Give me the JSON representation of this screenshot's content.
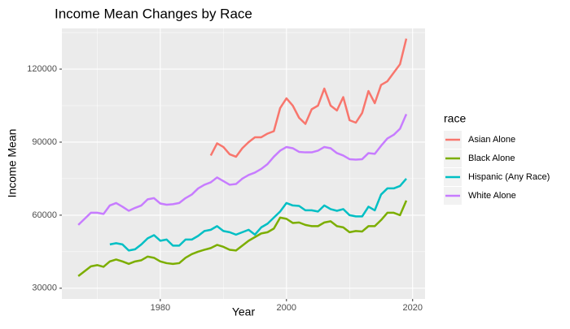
{
  "chart_data": {
    "type": "line",
    "title": "Income Mean Changes by Race",
    "x_label": "Year",
    "y_label": "Income Mean",
    "legend_title": "race",
    "legend_position": "right",
    "grid": true,
    "x": [
      1967,
      1968,
      1969,
      1970,
      1971,
      1972,
      1973,
      1974,
      1975,
      1976,
      1977,
      1978,
      1979,
      1980,
      1981,
      1982,
      1983,
      1984,
      1985,
      1986,
      1987,
      1988,
      1989,
      1990,
      1991,
      1992,
      1993,
      1994,
      1995,
      1996,
      1997,
      1998,
      1999,
      2000,
      2001,
      2002,
      2003,
      2004,
      2005,
      2006,
      2007,
      2008,
      2009,
      2010,
      2011,
      2012,
      2013,
      2014,
      2015,
      2016,
      2017,
      2018,
      2019
    ],
    "xlim": [
      1964.4,
      2021.97
    ],
    "xticks": [
      1980,
      2000,
      2020
    ],
    "ylim": [
      25600,
      136700
    ],
    "yticks": [
      30000,
      60000,
      90000,
      120000
    ],
    "series": [
      {
        "name": "Asian Alone",
        "color": "#F8766D",
        "values": [
          null,
          null,
          null,
          null,
          null,
          null,
          null,
          null,
          null,
          null,
          null,
          null,
          null,
          null,
          null,
          null,
          null,
          null,
          null,
          null,
          null,
          84500,
          89500,
          88000,
          85000,
          84000,
          87500,
          90000,
          92000,
          92000,
          93500,
          94500,
          104000,
          108000,
          105000,
          100000,
          97500,
          103500,
          105000,
          112000,
          105000,
          103000,
          108500,
          99000,
          98000,
          102000,
          111000,
          106000,
          113500,
          115000,
          118500,
          122000,
          132500
        ]
      },
      {
        "name": "Black Alone",
        "color": "#7CAE00",
        "values": [
          35000,
          37000,
          39000,
          39500,
          38800,
          41000,
          41800,
          41000,
          40000,
          41000,
          41500,
          43000,
          42500,
          41000,
          40300,
          40000,
          40300,
          42500,
          44000,
          45000,
          45800,
          46500,
          47800,
          47000,
          45800,
          45500,
          47500,
          49500,
          51000,
          52500,
          53000,
          54500,
          59000,
          58500,
          56800,
          57000,
          56000,
          55500,
          55500,
          57000,
          57500,
          55500,
          55000,
          53000,
          53500,
          53300,
          55500,
          55500,
          58000,
          61000,
          61000,
          60000,
          66000
        ]
      },
      {
        "name": "Hispanic (Any Race)",
        "color": "#00BFC4",
        "values": [
          null,
          null,
          null,
          null,
          null,
          48000,
          48500,
          48000,
          45500,
          46000,
          48000,
          50500,
          51800,
          49500,
          50000,
          47500,
          47500,
          50000,
          50000,
          51500,
          53500,
          54000,
          55500,
          53500,
          53000,
          52000,
          53000,
          54000,
          52000,
          55000,
          56500,
          59000,
          61500,
          65000,
          64000,
          63800,
          62000,
          62000,
          61500,
          64000,
          62500,
          61800,
          62500,
          60000,
          59500,
          59500,
          63500,
          62000,
          68500,
          71000,
          71000,
          72000,
          75000
        ]
      },
      {
        "name": "White Alone",
        "color": "#C77CFF",
        "values": [
          56000,
          58500,
          61000,
          61000,
          60500,
          64000,
          65000,
          63500,
          61800,
          63000,
          64000,
          66500,
          67000,
          64800,
          64300,
          64500,
          65000,
          67000,
          68500,
          71000,
          72500,
          73500,
          75500,
          74000,
          72500,
          72800,
          75000,
          76500,
          77500,
          79000,
          81000,
          84000,
          86500,
          88000,
          87500,
          86000,
          85800,
          85800,
          86500,
          88000,
          87500,
          85500,
          84500,
          83000,
          82800,
          83000,
          85500,
          85200,
          88500,
          91500,
          93000,
          95500,
          101500
        ]
      }
    ]
  }
}
